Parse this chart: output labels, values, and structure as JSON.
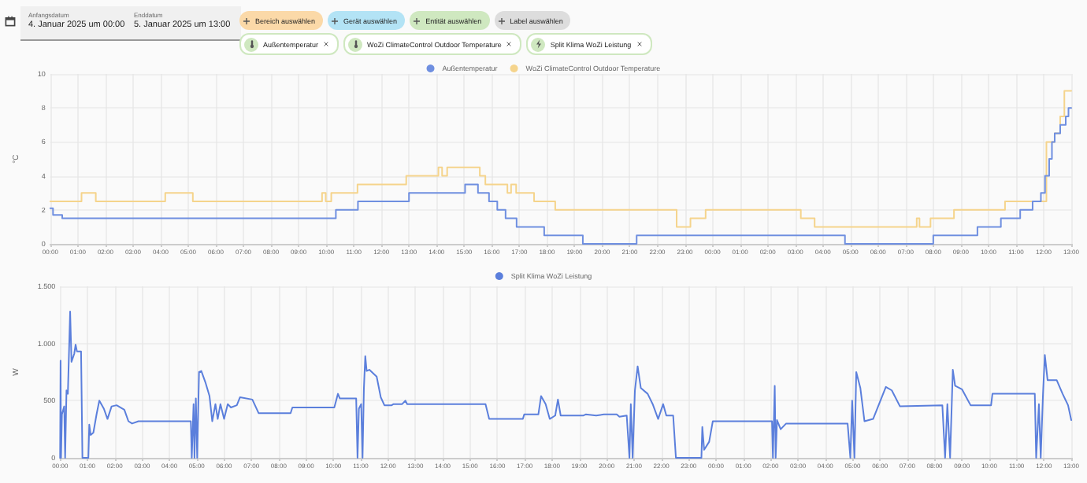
{
  "chart_data": [
    {
      "type": "step",
      "ylabel": "°C",
      "annotations": [
        "Anfangsdatum",
        "4. Januar 2025 um 00:00",
        "Enddatum",
        "5. Januar 2025 um 13:00",
        "Bereich auswählen",
        "Gerät auswählen",
        "Entität auswählen",
        "Label auswählen",
        "Außentemperatur",
        "WoZi ClimateControl Outdoor Temperature",
        "Split Klima WoZi Leistung"
      ],
      "series": [
        {
          "name": "Außentemperatur",
          "color": "#6f8fe0",
          "x": [
            "2025-01-04T00:00",
            "2025-01-04T00:06",
            "2025-01-04T00:26",
            "2025-01-04T10:21",
            "2025-01-04T11:09",
            "2025-01-04T13:00",
            "2025-01-04T15:02",
            "2025-01-04T15:30",
            "2025-01-04T15:54",
            "2025-01-04T16:12",
            "2025-01-04T16:30",
            "2025-01-04T16:54",
            "2025-01-04T17:54",
            "2025-01-04T19:18",
            "2025-01-04T21:15",
            "2025-01-05T04:48",
            "2025-01-05T08:00",
            "2025-01-05T09:36",
            "2025-01-05T10:27",
            "2025-01-05T11:09",
            "2025-01-05T11:36",
            "2025-01-05T11:54",
            "2025-01-05T12:03",
            "2025-01-05T12:12",
            "2025-01-05T12:18",
            "2025-01-05T12:24",
            "2025-01-05T12:36",
            "2025-01-05T12:48",
            "2025-01-05T12:54",
            "2025-01-05T13:00"
          ],
          "values": [
            2.1,
            1.7,
            1.5,
            2.0,
            2.5,
            3.0,
            3.5,
            3.0,
            2.5,
            2.0,
            1.5,
            1.0,
            0.5,
            0,
            0.5,
            0,
            0.5,
            1.0,
            1.5,
            2.0,
            2.5,
            3,
            4,
            5,
            6,
            6.5,
            7,
            7.5,
            8,
            8
          ]
        },
        {
          "name": "WoZi ClimateControl Outdoor Temperature",
          "color": "#f5d48c",
          "x": [
            "2025-01-04T00:00",
            "2025-01-04T01:08",
            "2025-01-04T01:39",
            "2025-01-04T04:10",
            "2025-01-04T05:10",
            "2025-01-04T09:51",
            "2025-01-04T09:59",
            "2025-01-04T10:11",
            "2025-01-04T11:08",
            "2025-01-04T12:54",
            "2025-01-04T14:04",
            "2025-01-04T14:12",
            "2025-01-04T14:23",
            "2025-01-04T15:34",
            "2025-01-04T15:46",
            "2025-01-04T16:34",
            "2025-01-04T16:42",
            "2025-01-04T16:53",
            "2025-01-04T17:32",
            "2025-01-04T18:18",
            "2025-01-04T22:42",
            "2025-01-04T23:12",
            "2025-01-04T23:45",
            "2025-01-05T03:12",
            "2025-01-05T03:42",
            "2025-01-05T07:24",
            "2025-01-05T07:30",
            "2025-01-05T07:54",
            "2025-01-05T08:45",
            "2025-01-05T10:36",
            "2025-01-05T12:06",
            "2025-01-05T12:24",
            "2025-01-05T12:36",
            "2025-01-05T12:45",
            "2025-01-05T13:00"
          ],
          "values": [
            2.5,
            3.0,
            2.5,
            3.0,
            2.5,
            3.0,
            2.5,
            3.0,
            3.5,
            4.0,
            4.5,
            4.0,
            4.5,
            4.0,
            3.5,
            3.0,
            3.5,
            3.0,
            2.5,
            2.0,
            1.0,
            1.5,
            2.0,
            1.5,
            1.0,
            1.5,
            1.0,
            1.5,
            2.0,
            2.5,
            6,
            6.5,
            7.5,
            9,
            9
          ]
        }
      ],
      "xlim": [
        "2025-01-04T00:00",
        "2025-01-05T13:00"
      ],
      "xticks": [
        {
          "value": "2025-01-04T00:00",
          "label": "00:00"
        },
        {
          "value": "2025-01-04T01:00",
          "label": "01:00"
        },
        {
          "value": "2025-01-04T02:00",
          "label": "02:00"
        },
        {
          "value": "2025-01-04T03:00",
          "label": "03:00"
        },
        {
          "value": "2025-01-04T04:00",
          "label": "04:00"
        },
        {
          "value": "2025-01-04T05:00",
          "label": "05:00"
        },
        {
          "value": "2025-01-04T06:00",
          "label": "06:00"
        },
        {
          "value": "2025-01-04T07:00",
          "label": "07:00"
        },
        {
          "value": "2025-01-04T08:00",
          "label": "08:00"
        },
        {
          "value": "2025-01-04T09:00",
          "label": "09:00"
        },
        {
          "value": "2025-01-04T10:00",
          "label": "10:00"
        },
        {
          "value": "2025-01-04T11:00",
          "label": "11:00"
        },
        {
          "value": "2025-01-04T12:00",
          "label": "12:00"
        },
        {
          "value": "2025-01-04T13:00",
          "label": "13:00"
        },
        {
          "value": "2025-01-04T14:00",
          "label": "14:00"
        },
        {
          "value": "2025-01-04T15:00",
          "label": "15:00"
        },
        {
          "value": "2025-01-04T16:00",
          "label": "16:00"
        },
        {
          "value": "2025-01-04T17:00",
          "label": "17:00"
        },
        {
          "value": "2025-01-04T18:00",
          "label": "18:00"
        },
        {
          "value": "2025-01-04T19:00",
          "label": "19:00"
        },
        {
          "value": "2025-01-04T20:00",
          "label": "20:00"
        },
        {
          "value": "2025-01-04T21:00",
          "label": "21:00"
        },
        {
          "value": "2025-01-04T22:00",
          "label": "22:00"
        },
        {
          "value": "2025-01-04T23:00",
          "label": "23:00"
        },
        {
          "value": "2025-01-05T00:00",
          "label": "00:00"
        },
        {
          "value": "2025-01-05T01:00",
          "label": "01:00"
        },
        {
          "value": "2025-01-05T02:00",
          "label": "02:00"
        },
        {
          "value": "2025-01-05T03:00",
          "label": "03:00"
        },
        {
          "value": "2025-01-05T04:00",
          "label": "04:00"
        },
        {
          "value": "2025-01-05T05:00",
          "label": "05:00"
        },
        {
          "value": "2025-01-05T06:00",
          "label": "06:00"
        },
        {
          "value": "2025-01-05T07:00",
          "label": "07:00"
        },
        {
          "value": "2025-01-05T08:00",
          "label": "08:00"
        },
        {
          "value": "2025-01-05T09:00",
          "label": "09:00"
        },
        {
          "value": "2025-01-05T10:00",
          "label": "10:00"
        },
        {
          "value": "2025-01-05T11:00",
          "label": "11:00"
        },
        {
          "value": "2025-01-05T12:00",
          "label": "12:00"
        },
        {
          "value": "2025-01-05T13:00",
          "label": "13:00"
        }
      ],
      "ylim": [
        0,
        10
      ],
      "yticks": [
        0,
        2,
        4,
        6,
        8,
        10
      ],
      "grid": true,
      "legend": "top",
      "marker": "none",
      "line_style": "solid"
    },
    {
      "type": "line",
      "ylabel": "W",
      "series": [
        {
          "name": "Split Klima WoZi Leistung",
          "color": "#5b7fdc",
          "x": [
            "2025-01-04T00:00",
            "2025-01-04T00:01",
            "2025-01-04T00:02",
            "2025-01-04T00:04",
            "2025-01-04T00:09",
            "2025-01-04T00:11",
            "2025-01-04T00:14",
            "2025-01-04T00:17",
            "2025-01-04T00:22",
            "2025-01-04T00:25",
            "2025-01-04T00:31",
            "2025-01-04T00:34",
            "2025-01-04T00:37",
            "2025-01-04T00:46",
            "2025-01-04T00:49",
            "2025-01-04T01:02",
            "2025-01-04T01:04",
            "2025-01-04T01:07",
            "2025-01-04T01:13",
            "2025-01-04T01:20",
            "2025-01-04T01:26",
            "2025-01-04T01:36",
            "2025-01-04T01:44",
            "2025-01-04T01:53",
            "2025-01-04T02:04",
            "2025-01-04T02:21",
            "2025-01-04T02:30",
            "2025-01-04T02:38",
            "2025-01-04T02:52",
            "2025-01-04T04:47",
            "2025-01-04T04:49",
            "2025-01-04T04:53",
            "2025-01-04T04:55",
            "2025-01-04T04:58",
            "2025-01-04T05:01",
            "2025-01-04T05:05",
            "2025-01-04T05:10",
            "2025-01-04T05:19",
            "2025-01-04T05:28",
            "2025-01-04T05:34",
            "2025-01-04T05:41",
            "2025-01-04T05:46",
            "2025-01-04T05:52",
            "2025-01-04T06:00",
            "2025-01-04T06:08",
            "2025-01-04T06:15",
            "2025-01-04T06:28",
            "2025-01-04T06:35",
            "2025-01-04T07:02",
            "2025-01-04T07:16",
            "2025-01-04T08:26",
            "2025-01-04T08:30",
            "2025-01-04T10:02",
            "2025-01-04T10:10",
            "2025-01-04T10:14",
            "2025-01-04T10:50",
            "2025-01-04T10:53",
            "2025-01-04T10:56",
            "2025-01-04T11:01",
            "2025-01-04T11:04",
            "2025-01-04T11:07",
            "2025-01-04T11:10",
            "2025-01-04T11:13",
            "2025-01-04T11:19",
            "2025-01-04T11:35",
            "2025-01-04T11:44",
            "2025-01-04T11:52",
            "2025-01-04T12:08",
            "2025-01-04T12:12",
            "2025-01-04T12:31",
            "2025-01-04T12:38",
            "2025-01-04T12:42",
            "2025-01-04T15:34",
            "2025-01-04T15:42",
            "2025-01-04T16:56",
            "2025-01-04T16:59",
            "2025-01-04T17:30",
            "2025-01-04T17:36",
            "2025-01-04T17:46",
            "2025-01-04T17:55",
            "2025-01-04T18:07",
            "2025-01-04T18:13",
            "2025-01-04T18:19",
            "2025-01-04T19:09",
            "2025-01-04T19:14",
            "2025-01-04T19:37",
            "2025-01-04T19:54",
            "2025-01-04T20:22",
            "2025-01-04T20:28",
            "2025-01-04T20:44",
            "2025-01-04T20:50",
            "2025-01-04T20:53",
            "2025-01-04T20:57",
            "2025-01-04T21:02",
            "2025-01-04T21:08",
            "2025-01-04T21:15",
            "2025-01-04T21:30",
            "2025-01-04T21:41",
            "2025-01-04T21:53",
            "2025-01-04T22:04",
            "2025-01-04T22:11",
            "2025-01-04T22:26",
            "2025-01-04T22:32",
            "2025-01-04T23:28",
            "2025-01-04T23:30",
            "2025-01-04T23:34",
            "2025-01-04T23:45",
            "2025-01-04T23:53",
            "2025-01-05T00:02",
            "2025-01-05T02:03",
            "2025-01-05T02:05",
            "2025-01-05T02:09",
            "2025-01-05T02:11",
            "2025-01-05T02:14",
            "2025-01-05T02:22",
            "2025-01-05T02:34",
            "2025-01-05T04:49",
            "2025-01-05T04:55",
            "2025-01-05T04:59",
            "2025-01-05T05:04",
            "2025-01-05T05:08",
            "2025-01-05T05:17",
            "2025-01-05T05:26",
            "2025-01-05T05:45",
            "2025-01-05T06:13",
            "2025-01-05T06:26",
            "2025-01-05T06:44",
            "2025-01-05T08:17",
            "2025-01-05T08:23",
            "2025-01-05T08:28",
            "2025-01-05T08:34",
            "2025-01-05T08:40",
            "2025-01-05T08:45",
            "2025-01-05T09:00",
            "2025-01-05T09:19",
            "2025-01-05T10:04",
            "2025-01-05T10:07",
            "2025-01-05T11:40",
            "2025-01-05T11:43",
            "2025-01-05T11:49",
            "2025-01-05T11:53",
            "2025-01-05T11:58",
            "2025-01-05T12:02",
            "2025-01-05T12:08",
            "2025-01-05T12:28",
            "2025-01-05T12:41",
            "2025-01-05T12:53",
            "2025-01-05T13:00"
          ],
          "values": [
            0,
            850,
            0,
            380,
            450,
            0,
            590,
            560,
            1280,
            840,
            910,
            990,
            930,
            930,
            0,
            0,
            290,
            200,
            220,
            380,
            500,
            430,
            340,
            450,
            460,
            420,
            320,
            300,
            320,
            320,
            0,
            470,
            0,
            520,
            0,
            750,
            760,
            660,
            540,
            320,
            470,
            340,
            470,
            340,
            470,
            440,
            460,
            530,
            510,
            390,
            390,
            440,
            440,
            560,
            520,
            520,
            0,
            430,
            470,
            0,
            610,
            890,
            760,
            770,
            710,
            530,
            460,
            460,
            470,
            470,
            500,
            470,
            470,
            340,
            340,
            380,
            380,
            540,
            470,
            340,
            370,
            510,
            370,
            370,
            380,
            370,
            380,
            380,
            360,
            370,
            0,
            470,
            0,
            590,
            800,
            610,
            560,
            470,
            340,
            470,
            370,
            370,
            0,
            0,
            270,
            70,
            140,
            320,
            320,
            320,
            0,
            630,
            0,
            330,
            250,
            300,
            300,
            0,
            500,
            0,
            750,
            610,
            320,
            340,
            620,
            590,
            450,
            460,
            0,
            470,
            0,
            770,
            630,
            600,
            460,
            460,
            560,
            560,
            0,
            470,
            0,
            560,
            900,
            680,
            680,
            560,
            460,
            330
          ]
        }
      ],
      "xlim": [
        "2025-01-04T00:00",
        "2025-01-05T13:00"
      ],
      "xticks": [
        {
          "value": "2025-01-04T00:00",
          "label": "00:00"
        },
        {
          "value": "2025-01-04T01:00",
          "label": "01:00"
        },
        {
          "value": "2025-01-04T02:00",
          "label": "02:00"
        },
        {
          "value": "2025-01-04T03:00",
          "label": "03:00"
        },
        {
          "value": "2025-01-04T04:00",
          "label": "04:00"
        },
        {
          "value": "2025-01-04T05:00",
          "label": "05:00"
        },
        {
          "value": "2025-01-04T06:00",
          "label": "06:00"
        },
        {
          "value": "2025-01-04T07:00",
          "label": "07:00"
        },
        {
          "value": "2025-01-04T08:00",
          "label": "08:00"
        },
        {
          "value": "2025-01-04T09:00",
          "label": "09:00"
        },
        {
          "value": "2025-01-04T10:00",
          "label": "10:00"
        },
        {
          "value": "2025-01-04T11:00",
          "label": "11:00"
        },
        {
          "value": "2025-01-04T12:00",
          "label": "12:00"
        },
        {
          "value": "2025-01-04T13:00",
          "label": "13:00"
        },
        {
          "value": "2025-01-04T14:00",
          "label": "14:00"
        },
        {
          "value": "2025-01-04T15:00",
          "label": "15:00"
        },
        {
          "value": "2025-01-04T16:00",
          "label": "16:00"
        },
        {
          "value": "2025-01-04T17:00",
          "label": "17:00"
        },
        {
          "value": "2025-01-04T18:00",
          "label": "18:00"
        },
        {
          "value": "2025-01-04T19:00",
          "label": "19:00"
        },
        {
          "value": "2025-01-04T20:00",
          "label": "20:00"
        },
        {
          "value": "2025-01-04T21:00",
          "label": "21:00"
        },
        {
          "value": "2025-01-04T22:00",
          "label": "22:00"
        },
        {
          "value": "2025-01-04T23:00",
          "label": "23:00"
        },
        {
          "value": "2025-01-05T00:00",
          "label": "00:00"
        },
        {
          "value": "2025-01-05T01:00",
          "label": "01:00"
        },
        {
          "value": "2025-01-05T02:00",
          "label": "02:00"
        },
        {
          "value": "2025-01-05T03:00",
          "label": "03:00"
        },
        {
          "value": "2025-01-05T04:00",
          "label": "04:00"
        },
        {
          "value": "2025-01-05T05:00",
          "label": "05:00"
        },
        {
          "value": "2025-01-05T06:00",
          "label": "06:00"
        },
        {
          "value": "2025-01-05T07:00",
          "label": "07:00"
        },
        {
          "value": "2025-01-05T08:00",
          "label": "08:00"
        },
        {
          "value": "2025-01-05T09:00",
          "label": "09:00"
        },
        {
          "value": "2025-01-05T10:00",
          "label": "10:00"
        },
        {
          "value": "2025-01-05T11:00",
          "label": "11:00"
        },
        {
          "value": "2025-01-05T12:00",
          "label": "12:00"
        },
        {
          "value": "2025-01-05T13:00",
          "label": "13:00"
        }
      ],
      "ylim": [
        0,
        1500
      ],
      "yticks": [
        0,
        500,
        {
          "value": 1000,
          "label": "1.000"
        },
        {
          "value": 1500,
          "label": "1.500"
        }
      ],
      "grid": true,
      "legend": "top",
      "marker": "none",
      "line_style": "solid"
    }
  ]
}
